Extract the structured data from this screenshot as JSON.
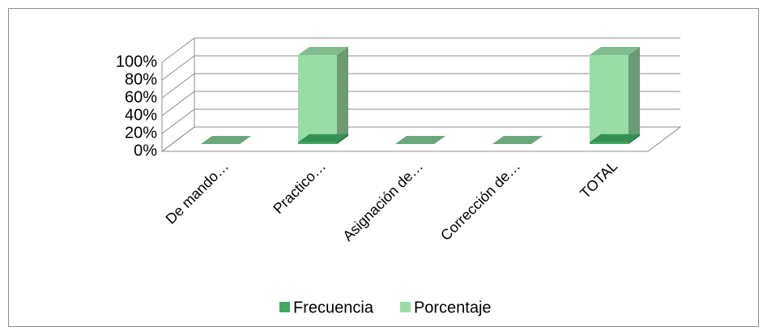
{
  "chart_data": {
    "type": "bar3d",
    "categories": [
      "De mando…",
      "Practico…",
      "Asignación de…",
      "Corrección de…",
      "TOTAL"
    ],
    "series": [
      {
        "name": "Frecuencia",
        "color": "#3daa60",
        "values": [
          0,
          2,
          0,
          0,
          2
        ]
      },
      {
        "name": "Porcentaje",
        "color": "#99dca6",
        "values": [
          0,
          100,
          0,
          0,
          100
        ]
      }
    ],
    "ylim": [
      0,
      100
    ],
    "yticks": [
      {
        "value": 0,
        "label": "0%"
      },
      {
        "value": 20,
        "label": "20%"
      },
      {
        "value": 40,
        "label": "40%"
      },
      {
        "value": 60,
        "label": "60%"
      },
      {
        "value": 80,
        "label": "80%"
      },
      {
        "value": 100,
        "label": "100%"
      }
    ],
    "grid": true,
    "legend": "bottom"
  }
}
